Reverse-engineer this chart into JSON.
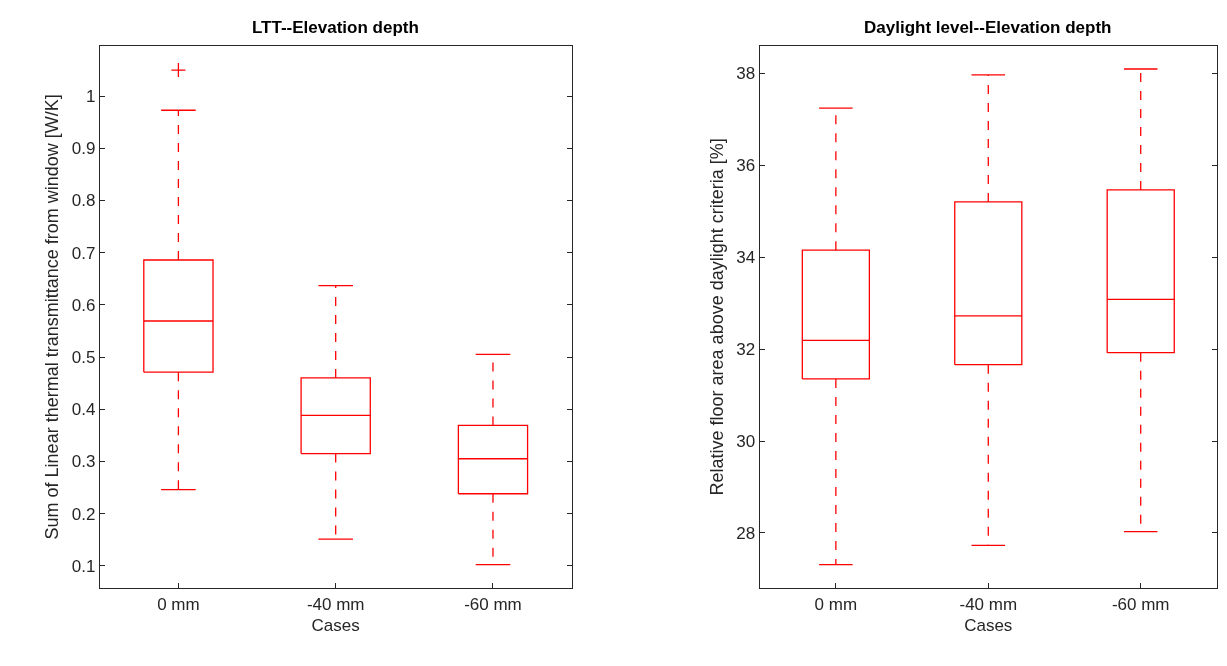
{
  "chart_data": [
    {
      "type": "box",
      "title": "LTT--Elevation depth",
      "xlabel": "Cases",
      "ylabel": "Sum of Linear thermal transmittance from window [W/K]",
      "categories": [
        "0 mm",
        "-40 mm",
        "-60 mm"
      ],
      "color": "#ff0000",
      "boxes": [
        {
          "low": 0.246,
          "q1": 0.471,
          "median": 0.569,
          "q3": 0.686,
          "high": 0.973,
          "outliers": [
            1.05
          ]
        },
        {
          "low": 0.151,
          "q1": 0.315,
          "median": 0.388,
          "q3": 0.46,
          "high": 0.637
        },
        {
          "low": 0.102,
          "q1": 0.238,
          "median": 0.305,
          "q3": 0.369,
          "high": 0.505
        }
      ],
      "ylim": [
        0.057,
        1.097
      ],
      "yticks": [
        0.1,
        0.2,
        0.3,
        0.4,
        0.5,
        0.6,
        0.7,
        0.8,
        0.9,
        1
      ],
      "line_style": "dashed",
      "marker": "cross"
    },
    {
      "type": "box",
      "title": "Daylight level--Elevation depth",
      "xlabel": "Cases",
      "ylabel": "Relative floor area above daylight criteria [%]",
      "categories": [
        "0 mm",
        "-40 mm",
        "-60 mm"
      ],
      "color": "#ff0000",
      "boxes": [
        {
          "low": 27.31,
          "q1": 31.35,
          "median": 32.19,
          "q3": 34.15,
          "high": 37.24
        },
        {
          "low": 27.73,
          "q1": 31.66,
          "median": 32.72,
          "q3": 35.2,
          "high": 37.96
        },
        {
          "low": 28.03,
          "q1": 31.92,
          "median": 33.08,
          "q3": 35.46,
          "high": 38.09
        }
      ],
      "ylim": [
        26.8,
        38.6
      ],
      "yticks": [
        28,
        30,
        32,
        34,
        36,
        38
      ],
      "line_style": "dashed"
    }
  ]
}
